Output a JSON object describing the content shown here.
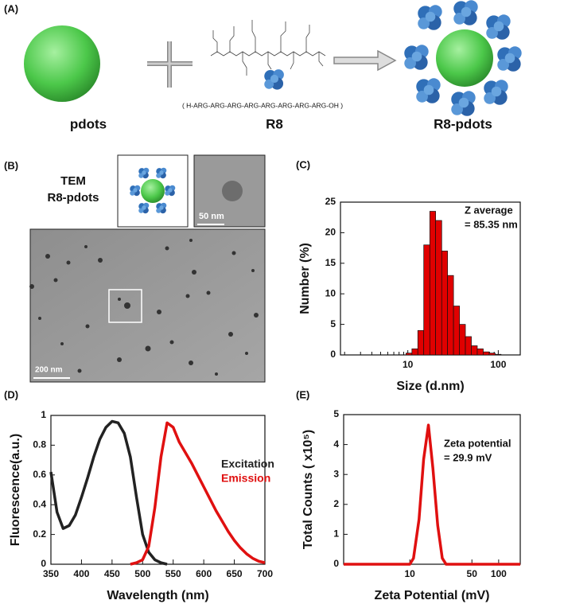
{
  "panel_a": {
    "label": "(A)",
    "left": "pdots",
    "middle": "R8",
    "sequence": "( H-ARG-ARG-ARG-ARG-ARG-ARG-ARG-ARG-OH )",
    "right": "R8-pdots"
  },
  "panel_b": {
    "label": "(B)",
    "title_1": "TEM",
    "title_2": "R8-pdots",
    "inset_scale": "50 nm",
    "main_scale": "200 nm"
  },
  "chart_data": [
    {
      "type": "histogram",
      "label": "(C)",
      "xlabel": "Size (d.nm)",
      "ylabel": "Number (%)",
      "annotations": [
        "Z average",
        "= 85.35 nm"
      ],
      "bins": [
        9.55,
        11.1,
        12.9,
        15.0,
        17.5,
        20.3,
        23.7,
        27.5,
        32.0,
        37.3,
        43.3,
        50.4,
        58.6,
        68.2,
        79.3,
        92.3,
        107.4
      ],
      "values": [
        0.3,
        1,
        4,
        18,
        23.5,
        22,
        17,
        13,
        8,
        5,
        3,
        1.5,
        1,
        0.5,
        0.3,
        0.1
      ],
      "color": "#e00000",
      "xscale": "log",
      "xlim": [
        1.8,
        175
      ],
      "xticks": [
        10,
        100
      ],
      "minor_xticks": [
        2,
        3,
        4,
        5,
        6,
        7,
        8,
        9,
        20,
        30,
        40,
        50,
        60,
        70,
        80,
        90
      ],
      "ylim": [
        0,
        25
      ],
      "yticks": [
        0,
        5,
        10,
        15,
        20,
        25
      ]
    },
    {
      "type": "line",
      "label": "(D)",
      "xlabel": "Wavelength (nm)",
      "ylabel": "Fluorescence(a.u.)",
      "x": [
        350,
        360,
        370,
        380,
        390,
        400,
        410,
        420,
        430,
        440,
        450,
        460,
        470,
        480,
        490,
        500,
        510,
        520,
        530,
        540,
        550,
        560,
        570,
        580,
        590,
        600,
        610,
        620,
        630,
        640,
        650,
        660,
        670,
        680,
        690,
        700
      ],
      "series": [
        {
          "name": "Excitation",
          "color": "#222222",
          "values": [
            0.62,
            0.35,
            0.24,
            0.26,
            0.33,
            0.45,
            0.58,
            0.72,
            0.84,
            0.92,
            0.96,
            0.95,
            0.88,
            0.72,
            0.45,
            0.2,
            0.08,
            0.03,
            0.01,
            0,
            null,
            null,
            null,
            null,
            null,
            null,
            null,
            null,
            null,
            null,
            null,
            null,
            null,
            null,
            null,
            null
          ]
        },
        {
          "name": "Emission",
          "color": "#e01010",
          "values": [
            null,
            null,
            null,
            null,
            null,
            null,
            null,
            null,
            null,
            null,
            null,
            null,
            null,
            0,
            0.01,
            0.03,
            0.12,
            0.38,
            0.72,
            0.95,
            0.92,
            0.82,
            0.75,
            0.68,
            0.6,
            0.52,
            0.44,
            0.36,
            0.29,
            0.22,
            0.16,
            0.11,
            0.07,
            0.04,
            0.02,
            0.01
          ]
        }
      ],
      "xlim": [
        350,
        700
      ],
      "xticks": [
        350,
        400,
        450,
        500,
        550,
        600,
        650,
        700
      ],
      "ylim": [
        0,
        1
      ],
      "yticks": [
        0,
        0.2,
        0.4,
        0.6,
        0.8,
        1
      ]
    },
    {
      "type": "line",
      "label": "(E)",
      "xlabel": "Zeta Potential (mV)",
      "ylabel": "Total Counts ( x10⁵)",
      "annotations": [
        "Zeta potential",
        "= 29.9 mV"
      ],
      "x": [
        1.8,
        10,
        11,
        12.7,
        14.3,
        16.2,
        18.2,
        20.6,
        23.2,
        25.6,
        175
      ],
      "series": [
        {
          "color": "#e01010",
          "values": [
            0,
            0,
            0.2,
            1.5,
            3.5,
            4.65,
            3.2,
            1.3,
            0.2,
            0,
            0
          ]
        }
      ],
      "xscale": "log",
      "xlim": [
        1.8,
        175
      ],
      "xticks": [
        10,
        50,
        100
      ],
      "ylim": [
        0,
        5
      ],
      "yticks": [
        0,
        1,
        2,
        3,
        4,
        5
      ]
    }
  ]
}
